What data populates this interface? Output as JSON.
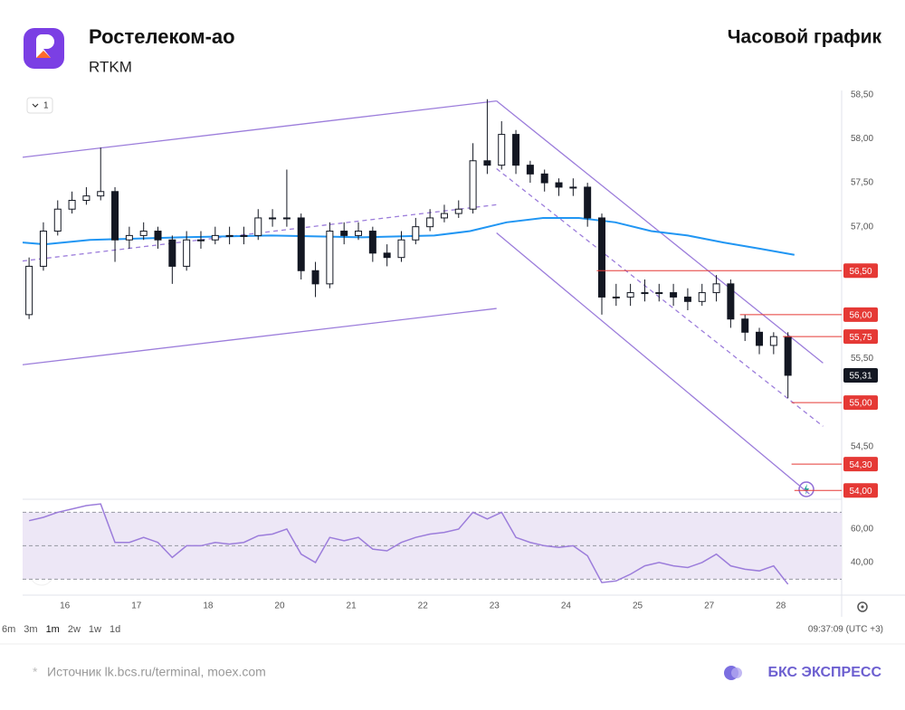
{
  "header": {
    "title": "Ростелеком-ао",
    "ticker": "RTKM",
    "chart_kind": "Часовой график"
  },
  "toolbar": {
    "interval_button": "1"
  },
  "chart_data": [
    {
      "type": "candlestick",
      "x": [
        -0.5,
        -0.3,
        -0.1,
        0.1,
        0.3,
        0.5,
        0.7,
        0.9,
        1.1,
        1.3,
        1.5,
        1.7,
        1.9,
        2.1,
        2.3,
        2.5,
        2.7,
        2.9,
        3.1,
        3.3,
        3.5,
        3.7,
        3.9,
        4.1,
        4.3,
        4.5,
        4.7,
        4.9,
        5.1,
        5.3,
        5.5,
        5.7,
        5.9,
        6.1,
        6.3,
        6.5,
        6.7,
        6.9,
        7.1,
        7.3,
        7.5,
        7.7,
        7.9,
        8.1,
        8.3,
        8.5,
        8.7,
        8.9,
        9.1,
        9.3,
        9.5,
        9.7,
        9.9,
        10.1
      ],
      "open": [
        56.0,
        56.55,
        56.95,
        57.2,
        57.3,
        57.35,
        57.4,
        56.85,
        56.9,
        56.95,
        56.85,
        56.55,
        56.85,
        56.85,
        56.9,
        56.9,
        56.9,
        57.1,
        57.1,
        57.1,
        56.5,
        56.35,
        56.95,
        56.9,
        56.95,
        56.7,
        56.65,
        56.85,
        57.0,
        57.1,
        57.15,
        57.2,
        57.75,
        57.7,
        58.05,
        57.7,
        57.6,
        57.5,
        57.45,
        57.45,
        57.1,
        56.2,
        56.2,
        56.25,
        56.25,
        56.25,
        56.2,
        56.15,
        56.25,
        56.35,
        55.95,
        55.8,
        55.65,
        55.75
      ],
      "high": [
        56.65,
        57.05,
        57.3,
        57.4,
        57.45,
        57.9,
        57.45,
        57.0,
        57.05,
        57.0,
        56.9,
        56.95,
        56.95,
        57.0,
        57.0,
        57.0,
        57.2,
        57.2,
        57.65,
        57.15,
        56.6,
        57.05,
        57.05,
        57.05,
        57.0,
        56.8,
        56.95,
        57.1,
        57.2,
        57.25,
        57.3,
        57.95,
        58.45,
        58.2,
        58.1,
        57.75,
        57.65,
        57.55,
        57.55,
        57.5,
        57.15,
        56.35,
        56.35,
        56.4,
        56.35,
        56.35,
        56.3,
        56.35,
        56.45,
        56.4,
        56.0,
        55.85,
        55.8,
        55.8
      ],
      "low": [
        55.95,
        56.5,
        56.9,
        57.15,
        57.25,
        57.3,
        56.6,
        56.75,
        56.85,
        56.75,
        56.35,
        56.5,
        56.75,
        56.8,
        56.8,
        56.8,
        56.85,
        57.0,
        57.0,
        56.4,
        56.2,
        56.3,
        56.8,
        56.85,
        56.6,
        56.55,
        56.6,
        56.8,
        56.95,
        57.05,
        57.1,
        57.15,
        57.6,
        57.65,
        57.6,
        57.5,
        57.4,
        57.35,
        57.35,
        57.0,
        56.0,
        56.1,
        56.1,
        56.15,
        56.15,
        56.1,
        56.05,
        56.1,
        56.15,
        55.85,
        55.7,
        55.55,
        55.55,
        55.05
      ],
      "close": [
        56.55,
        56.95,
        57.2,
        57.3,
        57.35,
        57.4,
        56.85,
        56.9,
        56.95,
        56.85,
        56.55,
        56.85,
        56.85,
        56.9,
        56.9,
        56.9,
        57.1,
        57.1,
        57.1,
        56.5,
        56.35,
        56.95,
        56.9,
        56.95,
        56.7,
        56.65,
        56.85,
        57.0,
        57.1,
        57.15,
        57.2,
        57.75,
        57.7,
        58.05,
        57.7,
        57.6,
        57.5,
        57.45,
        57.45,
        57.1,
        56.2,
        56.2,
        56.25,
        56.25,
        56.25,
        56.2,
        56.15,
        56.25,
        56.35,
        55.95,
        55.8,
        55.65,
        55.75,
        55.31
      ],
      "up_color": "#ffffff",
      "down_color": "#131722",
      "series": [
        {
          "color": "#2196f3",
          "x": [
            -0.59,
            -0.28,
            0.35,
            1.62,
            2.88,
            4.15,
            5.16,
            5.66,
            6.17,
            6.68,
            7.18,
            7.69,
            8.19,
            8.7,
            9.2,
            9.71,
            10.19
          ],
          "values": [
            56.82,
            56.8,
            56.85,
            56.88,
            56.9,
            56.88,
            56.9,
            56.95,
            57.05,
            57.1,
            57.1,
            57.05,
            56.95,
            56.9,
            56.82,
            56.75,
            56.68
          ]
        }
      ],
      "trendline_color": "#9c7ddb",
      "trendlines": [
        {
          "x": [
            -0.59,
            6.03
          ],
          "y": [
            57.79,
            58.43
          ],
          "dashed": false
        },
        {
          "x": [
            -0.59,
            6.03
          ],
          "y": [
            56.61,
            57.25
          ],
          "dashed": true
        },
        {
          "x": [
            -0.59,
            6.03
          ],
          "y": [
            55.43,
            56.07
          ],
          "dashed": false
        },
        {
          "x": [
            6.03,
            10.59
          ],
          "y": [
            58.43,
            55.45
          ],
          "dashed": false
        },
        {
          "x": [
            6.03,
            10.59
          ],
          "y": [
            57.66,
            54.73
          ],
          "dashed": true
        },
        {
          "x": [
            6.03,
            10.4
          ],
          "y": [
            56.93,
            53.96
          ],
          "dashed": false
        }
      ],
      "level_color": "#e53935",
      "levels": [
        {
          "from": 7.43,
          "value": 56.5,
          "label": "56,50"
        },
        {
          "from": 9.43,
          "value": 56.0,
          "label": "56,00"
        },
        {
          "from": 10.03,
          "value": 55.75,
          "label": "55,75"
        },
        {
          "from": 10.15,
          "value": 55.0,
          "label": "55,00"
        },
        {
          "from": 10.15,
          "value": 54.3,
          "label": "54,30"
        },
        {
          "from": 10.19,
          "value": 54.0,
          "label": "54,00"
        }
      ],
      "last_price": {
        "value": 55.31,
        "label": "55,31"
      },
      "xlim": [
        -0.59,
        10.85
      ],
      "ylim": [
        53.9,
        58.55
      ],
      "yticks": [
        {
          "value": 58.5,
          "label": "58,50"
        },
        {
          "value": 58.0,
          "label": "58,00"
        },
        {
          "value": 57.5,
          "label": "57,50"
        },
        {
          "value": 57.0,
          "label": "57,00"
        },
        {
          "value": 55.5,
          "label": "55,50"
        },
        {
          "value": 54.5,
          "label": "54,50"
        }
      ]
    },
    {
      "type": "line",
      "x": [
        -0.5,
        -0.3,
        -0.1,
        0.1,
        0.3,
        0.5,
        0.7,
        0.9,
        1.1,
        1.3,
        1.5,
        1.7,
        1.9,
        2.1,
        2.3,
        2.5,
        2.7,
        2.9,
        3.1,
        3.3,
        3.5,
        3.7,
        3.9,
        4.1,
        4.3,
        4.5,
        4.7,
        4.9,
        5.1,
        5.3,
        5.5,
        5.7,
        5.9,
        6.1,
        6.3,
        6.5,
        6.7,
        6.9,
        7.1,
        7.3,
        7.5,
        7.7,
        7.9,
        8.1,
        8.3,
        8.5,
        8.7,
        8.9,
        9.1,
        9.3,
        9.5,
        9.7,
        9.9,
        10.1
      ],
      "series": [
        {
          "color": "#9c7ddb",
          "values": [
            65,
            67,
            70,
            72,
            74,
            75,
            52,
            52,
            55,
            52,
            43,
            50,
            50,
            52,
            51,
            52,
            56,
            57,
            60,
            45,
            40,
            55,
            53,
            55,
            48,
            47,
            52,
            55,
            57,
            58,
            60,
            70,
            66,
            70,
            55,
            52,
            50,
            49,
            50,
            44,
            28,
            29,
            33,
            38,
            40,
            38,
            37,
            40,
            45,
            38,
            36,
            35,
            38,
            27
          ]
        }
      ],
      "band": [
        30,
        70
      ],
      "band_color": "#ede7f6",
      "hlines": [
        70,
        50,
        30
      ],
      "xlim": [
        -0.59,
        10.85
      ],
      "ylim": [
        20.5,
        77.8
      ],
      "xticks": [
        {
          "value": 0,
          "label": "16"
        },
        {
          "value": 1,
          "label": "17"
        },
        {
          "value": 2,
          "label": "18"
        },
        {
          "value": 3,
          "label": "20"
        },
        {
          "value": 4,
          "label": "21"
        },
        {
          "value": 5,
          "label": "22"
        },
        {
          "value": 6,
          "label": "23"
        },
        {
          "value": 7,
          "label": "24"
        },
        {
          "value": 8,
          "label": "25"
        },
        {
          "value": 9,
          "label": "27"
        },
        {
          "value": 10,
          "label": "28"
        }
      ],
      "yticks": [
        {
          "value": 60,
          "label": "60,00"
        },
        {
          "value": 40,
          "label": "40,00"
        }
      ]
    }
  ],
  "timeframes": [
    "6m",
    "3m",
    "1m",
    "2w",
    "1w",
    "1d"
  ],
  "clock": "09:37:09 (UTC +3)",
  "footer": {
    "source": "Источник lk.bcs.ru/terminal, moex.com",
    "brand": "БКС ЭКСПРЕСС"
  }
}
